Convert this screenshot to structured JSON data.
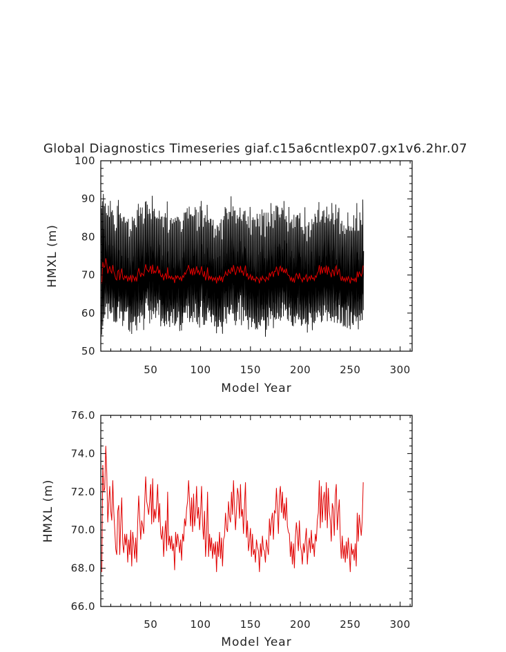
{
  "title": "Global Diagnostics Timeseries giaf.c15a6cntlexp07.gx1v6.2hr.07",
  "colors": {
    "monthly": "#000000",
    "annual": "#e00000",
    "axis": "#000000"
  },
  "chart_data": [
    {
      "type": "line",
      "name": "top",
      "xlabel": "Model Year",
      "ylabel": "HMXL (m)",
      "xlim": [
        0,
        312
      ],
      "ylim": [
        50,
        100
      ],
      "xticks": [
        50,
        100,
        150,
        200,
        250,
        300
      ],
      "xtick_labels": [
        "50",
        "100",
        "150",
        "200",
        "250",
        "300"
      ],
      "yticks": [
        50,
        60,
        70,
        80,
        90,
        100
      ],
      "ytick_labels": [
        "50",
        "60",
        "70",
        "80",
        "90",
        "100"
      ],
      "series": [
        {
          "name": "monthly",
          "color": "#000000",
          "description": "monthly global mean HMXL; seasonal cycle roughly 55–90 m each year",
          "monthly_cycle_shape": [
            0.55,
            1.0,
            0.85,
            0.35,
            -0.35,
            -0.75,
            -0.9,
            -0.8,
            -0.55,
            -0.2,
            0.1,
            0.3
          ],
          "upper_amplitude": 16,
          "lower_amplitude": 10
        },
        {
          "name": "annual",
          "color": "#e00000",
          "ref": "annual_means"
        }
      ]
    },
    {
      "type": "line",
      "name": "bottom",
      "xlabel": "Model Year",
      "ylabel": "HMXL (m)",
      "xlim": [
        0,
        312
      ],
      "ylim": [
        66,
        76
      ],
      "xticks": [
        50,
        100,
        150,
        200,
        250,
        300
      ],
      "xtick_labels": [
        "50",
        "100",
        "150",
        "200",
        "250",
        "300"
      ],
      "yticks": [
        66,
        68,
        70,
        72,
        74,
        76
      ],
      "ytick_labels": [
        "66.0",
        "68.0",
        "70.0",
        "72.0",
        "74.0",
        "76.0"
      ],
      "series": [
        {
          "name": "annual",
          "color": "#e00000",
          "ref": "annual_means"
        }
      ]
    }
  ],
  "annual_means": {
    "x_start": 1,
    "values": [
      67.8,
      73.4,
      72.0,
      72.2,
      74.4,
      73.0,
      70.4,
      71.4,
      72.3,
      71.0,
      70.5,
      72.6,
      71.0,
      70.0,
      69.0,
      68.7,
      71.0,
      71.3,
      68.7,
      70.4,
      71.7,
      69.3,
      68.8,
      69.8,
      69.2,
      69.8,
      68.3,
      69.5,
      68.7,
      70.0,
      68.1,
      69.9,
      69.3,
      68.5,
      69.6,
      68.3,
      70.4,
      71.8,
      70.6,
      69.5,
      70.5,
      70.2,
      69.8,
      71.4,
      72.8,
      71.5,
      71.2,
      70.8,
      71.5,
      72.4,
      70.3,
      72.7,
      70.4,
      71.1,
      70.6,
      71.4,
      72.4,
      70.4,
      71.4,
      69.8,
      69.5,
      70.2,
      68.6,
      69.7,
      70.5,
      68.9,
      72.0,
      69.2,
      69.7,
      69.0,
      69.7,
      68.9,
      69.3,
      67.9,
      69.9,
      69.1,
      69.8,
      69.4,
      68.8,
      69.5,
      68.4,
      69.8,
      69.4,
      70.6,
      70.2,
      71.1,
      71.5,
      72.6,
      71.5,
      70.2,
      71.7,
      69.9,
      71.9,
      70.2,
      70.8,
      72.3,
      70.6,
      71.2,
      70.0,
      70.9,
      72.3,
      70.3,
      69.5,
      71.0,
      68.6,
      69.7,
      72.0,
      68.6,
      69.8,
      68.9,
      69.6,
      68.5,
      69.3,
      68.7,
      69.4,
      67.8,
      69.4,
      68.6,
      69.9,
      68.5,
      69.6,
      68.1,
      69.5,
      69.7,
      70.9,
      70.1,
      69.9,
      71.5,
      70.7,
      70.4,
      72.0,
      70.8,
      72.6,
      71.2,
      70.0,
      71.0,
      72.2,
      71.8,
      70.6,
      72.4,
      70.7,
      71.1,
      69.8,
      71.3,
      72.5,
      69.6,
      70.5,
      68.9,
      69.4,
      70.1,
      68.6,
      69.8,
      68.7,
      69.0,
      68.3,
      69.5,
      69.1,
      68.9,
      67.8,
      69.3,
      68.6,
      69.7,
      69.0,
      68.9,
      68.3,
      69.5,
      69.1,
      68.7,
      70.6,
      69.7,
      70.5,
      70.9,
      69.5,
      71.0,
      70.9,
      72.2,
      71.1,
      69.8,
      71.8,
      72.3,
      70.9,
      72.0,
      70.6,
      71.4,
      70.5,
      71.7,
      70.2,
      69.9,
      69.8,
      68.6,
      69.4,
      68.2,
      69.3,
      68.0,
      69.6,
      70.4,
      69.8,
      68.9,
      70.5,
      69.2,
      68.9,
      68.2,
      69.3,
      68.8,
      69.5,
      70.1,
      68.2,
      69.1,
      69.6,
      68.8,
      70.0,
      69.0,
      69.3,
      68.6,
      69.8,
      69.4,
      70.5,
      70.9,
      72.6,
      70.1,
      72.3,
      70.4,
      71.6,
      72.0,
      70.5,
      72.5,
      70.1,
      72.2,
      71.0,
      70.5,
      69.4,
      71.4,
      71.1,
      69.7,
      71.8,
      72.4,
      70.0,
      70.9,
      71.6,
      69.6,
      68.5,
      69.7,
      68.5,
      69.2,
      68.3,
      69.4,
      68.5,
      69.6,
      68.9,
      67.8,
      69.3,
      68.7,
      69.0,
      68.4,
      69.3,
      68.1,
      70.9,
      69.4,
      70.8,
      70.3,
      69.7,
      70.5,
      72.5
    ]
  }
}
